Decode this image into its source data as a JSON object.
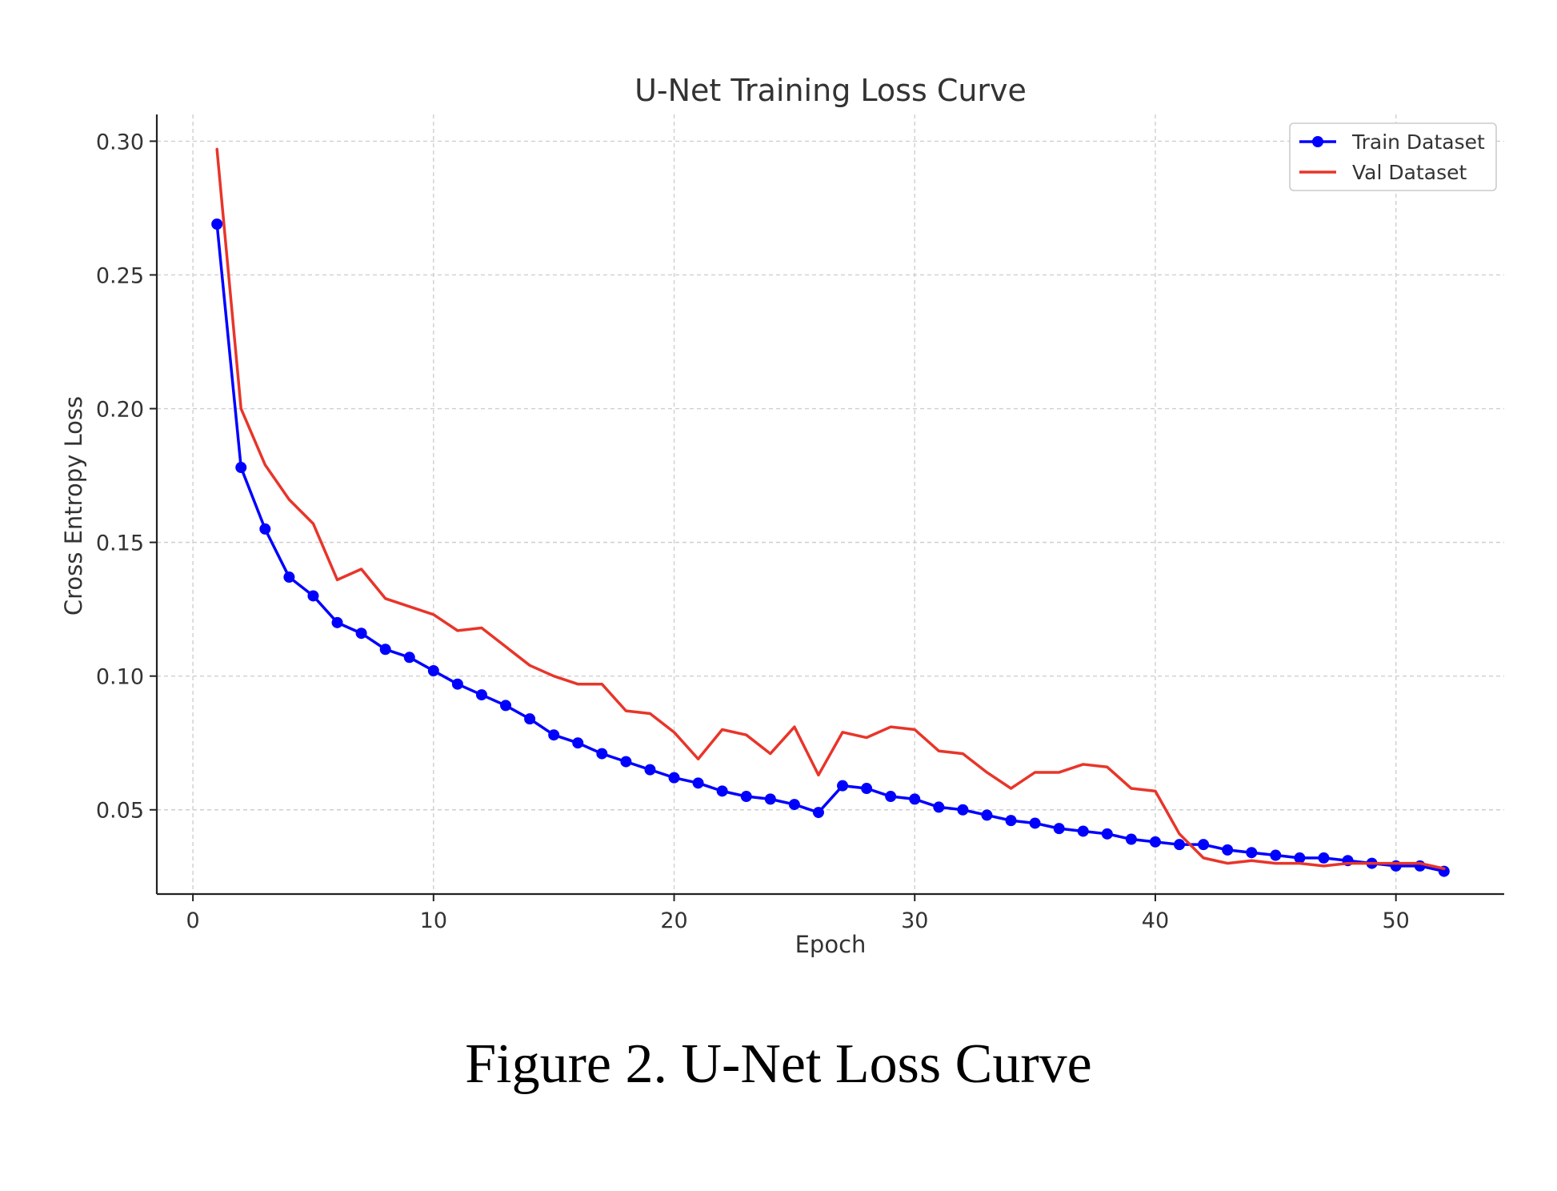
{
  "caption": "Figure 2. U-Net Loss Curve",
  "chart_data": {
    "type": "line",
    "title": "U-Net Training Loss Curve",
    "xlabel": "Epoch",
    "ylabel": "Cross Entropy Loss",
    "xlim": [
      -1.5,
      54.5
    ],
    "ylim": [
      0.0185,
      0.31
    ],
    "xticks": [
      0,
      10,
      20,
      30,
      40,
      50
    ],
    "yticks": [
      0.05,
      0.1,
      0.15,
      0.2,
      0.25,
      0.3
    ],
    "ytick_labels": [
      "0.05",
      "0.10",
      "0.15",
      "0.20",
      "0.25",
      "0.30"
    ],
    "grid": true,
    "legend_position": "top-right",
    "x": [
      1,
      2,
      3,
      4,
      5,
      6,
      7,
      8,
      9,
      10,
      11,
      12,
      13,
      14,
      15,
      16,
      17,
      18,
      19,
      20,
      21,
      22,
      23,
      24,
      25,
      26,
      27,
      28,
      29,
      30,
      31,
      32,
      33,
      34,
      35,
      36,
      37,
      38,
      39,
      40,
      41,
      42,
      43,
      44,
      45,
      46,
      47,
      48,
      49,
      50,
      51,
      52
    ],
    "series": [
      {
        "name": "Train Dataset",
        "color": "#0000ff",
        "marker": "circle",
        "values": [
          0.269,
          0.178,
          0.155,
          0.137,
          0.13,
          0.12,
          0.116,
          0.11,
          0.107,
          0.102,
          0.097,
          0.093,
          0.089,
          0.084,
          0.078,
          0.075,
          0.071,
          0.068,
          0.065,
          0.062,
          0.06,
          0.057,
          0.055,
          0.054,
          0.052,
          0.049,
          0.059,
          0.058,
          0.055,
          0.054,
          0.051,
          0.05,
          0.048,
          0.046,
          0.045,
          0.043,
          0.042,
          0.041,
          0.039,
          0.038,
          0.037,
          0.037,
          0.035,
          0.034,
          0.033,
          0.032,
          0.032,
          0.031,
          0.03,
          0.029,
          0.029,
          0.027
        ]
      },
      {
        "name": "Val Dataset",
        "color": "#e8352a",
        "marker": "none",
        "values": [
          0.297,
          0.2,
          0.179,
          0.166,
          0.157,
          0.136,
          0.14,
          0.129,
          0.126,
          0.123,
          0.117,
          0.118,
          0.111,
          0.104,
          0.1,
          0.097,
          0.097,
          0.087,
          0.086,
          0.079,
          0.069,
          0.08,
          0.078,
          0.071,
          0.081,
          0.063,
          0.079,
          0.077,
          0.081,
          0.08,
          0.072,
          0.071,
          0.064,
          0.058,
          0.064,
          0.064,
          0.067,
          0.066,
          0.058,
          0.057,
          0.041,
          0.032,
          0.03,
          0.031,
          0.03,
          0.03,
          0.029,
          0.03,
          0.03,
          0.03,
          0.03,
          0.028
        ]
      }
    ]
  }
}
